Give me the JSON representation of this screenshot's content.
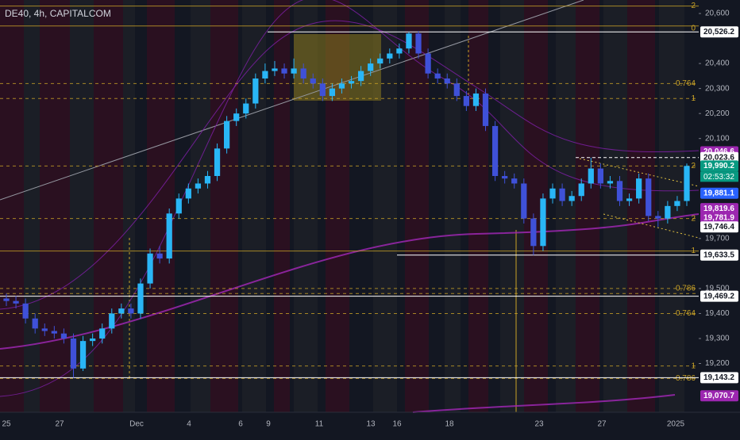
{
  "chart_data": {
    "type": "candlestick",
    "title": "DE40, 4h, CAPITALCOM",
    "up_color": "#29b6f6",
    "down_color": "#3f51d8",
    "ylim": [
      19005,
      20654
    ],
    "yticks": [
      {
        "value": 20600,
        "label": "20,600"
      },
      {
        "value": 20400,
        "label": "20,400"
      },
      {
        "value": 20300,
        "label": "20,300"
      },
      {
        "value": 20200,
        "label": "20,200"
      },
      {
        "value": 20100,
        "label": "20,100"
      },
      {
        "value": 19700,
        "label": "19,700"
      },
      {
        "value": 19500,
        "label": "19,500"
      },
      {
        "value": 19400,
        "label": "19,400"
      },
      {
        "value": 19300,
        "label": "19,300"
      },
      {
        "value": 19200,
        "label": "19,200"
      }
    ],
    "xlabels": [
      "25",
      "27",
      "Dec",
      "4",
      "6",
      "9",
      "11",
      "13",
      "16",
      "18",
      "23",
      "27",
      "2025"
    ],
    "candles": [
      [
        19460,
        19480,
        19430,
        19450
      ],
      [
        19450,
        19470,
        19420,
        19440
      ],
      [
        19440,
        19460,
        19360,
        19380
      ],
      [
        19380,
        19400,
        19320,
        19340
      ],
      [
        19340,
        19360,
        19310,
        19330
      ],
      [
        19330,
        19350,
        19300,
        19320
      ],
      [
        19320,
        19340,
        19280,
        19300
      ],
      [
        19300,
        19320,
        19143.2,
        19180
      ],
      [
        19180,
        19310,
        19170,
        19290
      ],
      [
        19290,
        19320,
        19270,
        19300
      ],
      [
        19300,
        19360,
        19280,
        19340
      ],
      [
        19340,
        19420,
        19320,
        19400
      ],
      [
        19400,
        19440,
        19380,
        19420
      ],
      [
        19420,
        19440,
        19380,
        19400
      ],
      [
        19400,
        19540,
        19380,
        19520
      ],
      [
        19520,
        19660,
        19500,
        19640
      ],
      [
        19640,
        19670,
        19600,
        19620
      ],
      [
        19620,
        19820,
        19600,
        19800
      ],
      [
        19800,
        19880,
        19780,
        19860
      ],
      [
        19860,
        19920,
        19840,
        19900
      ],
      [
        19900,
        19940,
        19880,
        19920
      ],
      [
        19920,
        19970,
        19900,
        19950
      ],
      [
        19950,
        20080,
        19930,
        20060
      ],
      [
        20060,
        20190,
        20040,
        20170
      ],
      [
        20170,
        20220,
        20150,
        20200
      ],
      [
        20200,
        20260,
        20180,
        20240
      ],
      [
        20240,
        20360,
        20220,
        20340
      ],
      [
        20340,
        20400,
        20320,
        20370
      ],
      [
        20370,
        20410,
        20350,
        20380
      ],
      [
        20380,
        20400,
        20340,
        20360
      ],
      [
        20360,
        20420,
        20340,
        20380
      ],
      [
        20380,
        20400,
        20320,
        20340
      ],
      [
        20340,
        20360,
        20300,
        20320
      ],
      [
        20320,
        20340,
        20250,
        20270
      ],
      [
        20270,
        20320,
        20250,
        20300
      ],
      [
        20300,
        20340,
        20280,
        20320
      ],
      [
        20320,
        20350,
        20300,
        20330
      ],
      [
        20330,
        20390,
        20310,
        20370
      ],
      [
        20370,
        20420,
        20350,
        20400
      ],
      [
        20400,
        20440,
        20380,
        20420
      ],
      [
        20420,
        20460,
        20400,
        20440
      ],
      [
        20440,
        20480,
        20420,
        20460
      ],
      [
        20460,
        20526.2,
        20440,
        20520
      ],
      [
        20520,
        20530,
        20420,
        20440
      ],
      [
        20440,
        20460,
        20340,
        20360
      ],
      [
        20360,
        20380,
        20320,
        20340
      ],
      [
        20340,
        20360,
        20300,
        20320
      ],
      [
        20320,
        20340,
        20250,
        20270
      ],
      [
        20270,
        20290,
        20210,
        20230
      ],
      [
        20230,
        20300,
        20210,
        20280
      ],
      [
        20280,
        20300,
        20130,
        20150
      ],
      [
        20150,
        20170,
        19930,
        19950
      ],
      [
        19950,
        19970,
        19920,
        19940
      ],
      [
        19940,
        19960,
        19900,
        19920
      ],
      [
        19920,
        19940,
        19760,
        19780
      ],
      [
        19780,
        19800,
        19633.5,
        19670
      ],
      [
        19670,
        19880,
        19650,
        19860
      ],
      [
        19860,
        19920,
        19840,
        19900
      ],
      [
        19900,
        19920,
        19830,
        19850
      ],
      [
        19850,
        19890,
        19830,
        19870
      ],
      [
        19870,
        19940,
        19850,
        19920
      ],
      [
        19920,
        20023.6,
        19900,
        19980
      ],
      [
        19980,
        20000,
        19900,
        19920
      ],
      [
        19920,
        19950,
        19900,
        19930
      ],
      [
        19930,
        19950,
        19830,
        19850
      ],
      [
        19850,
        19880,
        19830,
        19860
      ],
      [
        19860,
        19960,
        19840,
        19940
      ],
      [
        19940,
        19960,
        19770,
        19790
      ],
      [
        19790,
        19810,
        19746.4,
        19780
      ],
      [
        19780,
        19850,
        19760,
        19830
      ],
      [
        19830,
        19870,
        19810,
        19850
      ],
      [
        19850,
        20000,
        19830,
        19990.2
      ]
    ],
    "price_badges": [
      {
        "value": 20526.2,
        "label": "20,526.2",
        "color": "#ffffff"
      },
      {
        "value": 20046.6,
        "label": "20,046.6",
        "color": "#9c27b0"
      },
      {
        "value": 20023.6,
        "label": "20,023.6",
        "color": "#ffffff"
      },
      {
        "value": 19990.2,
        "label": "19,990.2",
        "color": "#089981"
      },
      {
        "value": 19881.1,
        "label": "19,881.1",
        "color": "#2962ff"
      },
      {
        "value": 19819.6,
        "label": "19,819.6",
        "color": "#9c27b0"
      },
      {
        "value": 19781.9,
        "label": "19,781.9",
        "color": "#9c27b0"
      },
      {
        "value": 19746.4,
        "label": "19,746.4",
        "color": "#ffffff"
      },
      {
        "value": 19633.5,
        "label": "19,633.5",
        "color": "#ffffff"
      },
      {
        "value": 19469.2,
        "label": "19,469.2",
        "color": "#ffffff"
      },
      {
        "value": 19143.2,
        "label": "19,143.2",
        "color": "#ffffff"
      },
      {
        "value": 19070.7,
        "label": "19,070.7",
        "color": "#9c27b0"
      }
    ],
    "countdown": "02:53:32",
    "levels": [
      {
        "value": 20630,
        "dashed": false
      },
      {
        "value": 20550,
        "dashed": false
      },
      {
        "value": 20320,
        "dashed": true
      },
      {
        "value": 20260,
        "dashed": true
      },
      {
        "value": 19990,
        "dashed": true
      },
      {
        "value": 19780,
        "dashed": true
      },
      {
        "value": 19650,
        "dashed": false
      },
      {
        "value": 19500,
        "dashed": true
      },
      {
        "value": 19480,
        "dashed": true
      },
      {
        "value": 19400,
        "dashed": true
      },
      {
        "value": 19190,
        "dashed": true
      },
      {
        "value": 19140,
        "dashed": true
      }
    ],
    "fib_labels": [
      {
        "label": "2",
        "value": 20630
      },
      {
        "label": "0",
        "value": 20540
      },
      {
        "label": "0.764",
        "value": 20320
      },
      {
        "label": "1",
        "value": 20260
      },
      {
        "label": "2",
        "value": 19990
      },
      {
        "label": "2",
        "value": 19780
      },
      {
        "label": "1",
        "value": 19650
      },
      {
        "label": "0.786",
        "value": 19500
      },
      {
        "label": "0.764",
        "value": 19400
      },
      {
        "label": "1",
        "value": 19190
      },
      {
        "label": "0.786",
        "value": 19140
      }
    ]
  }
}
